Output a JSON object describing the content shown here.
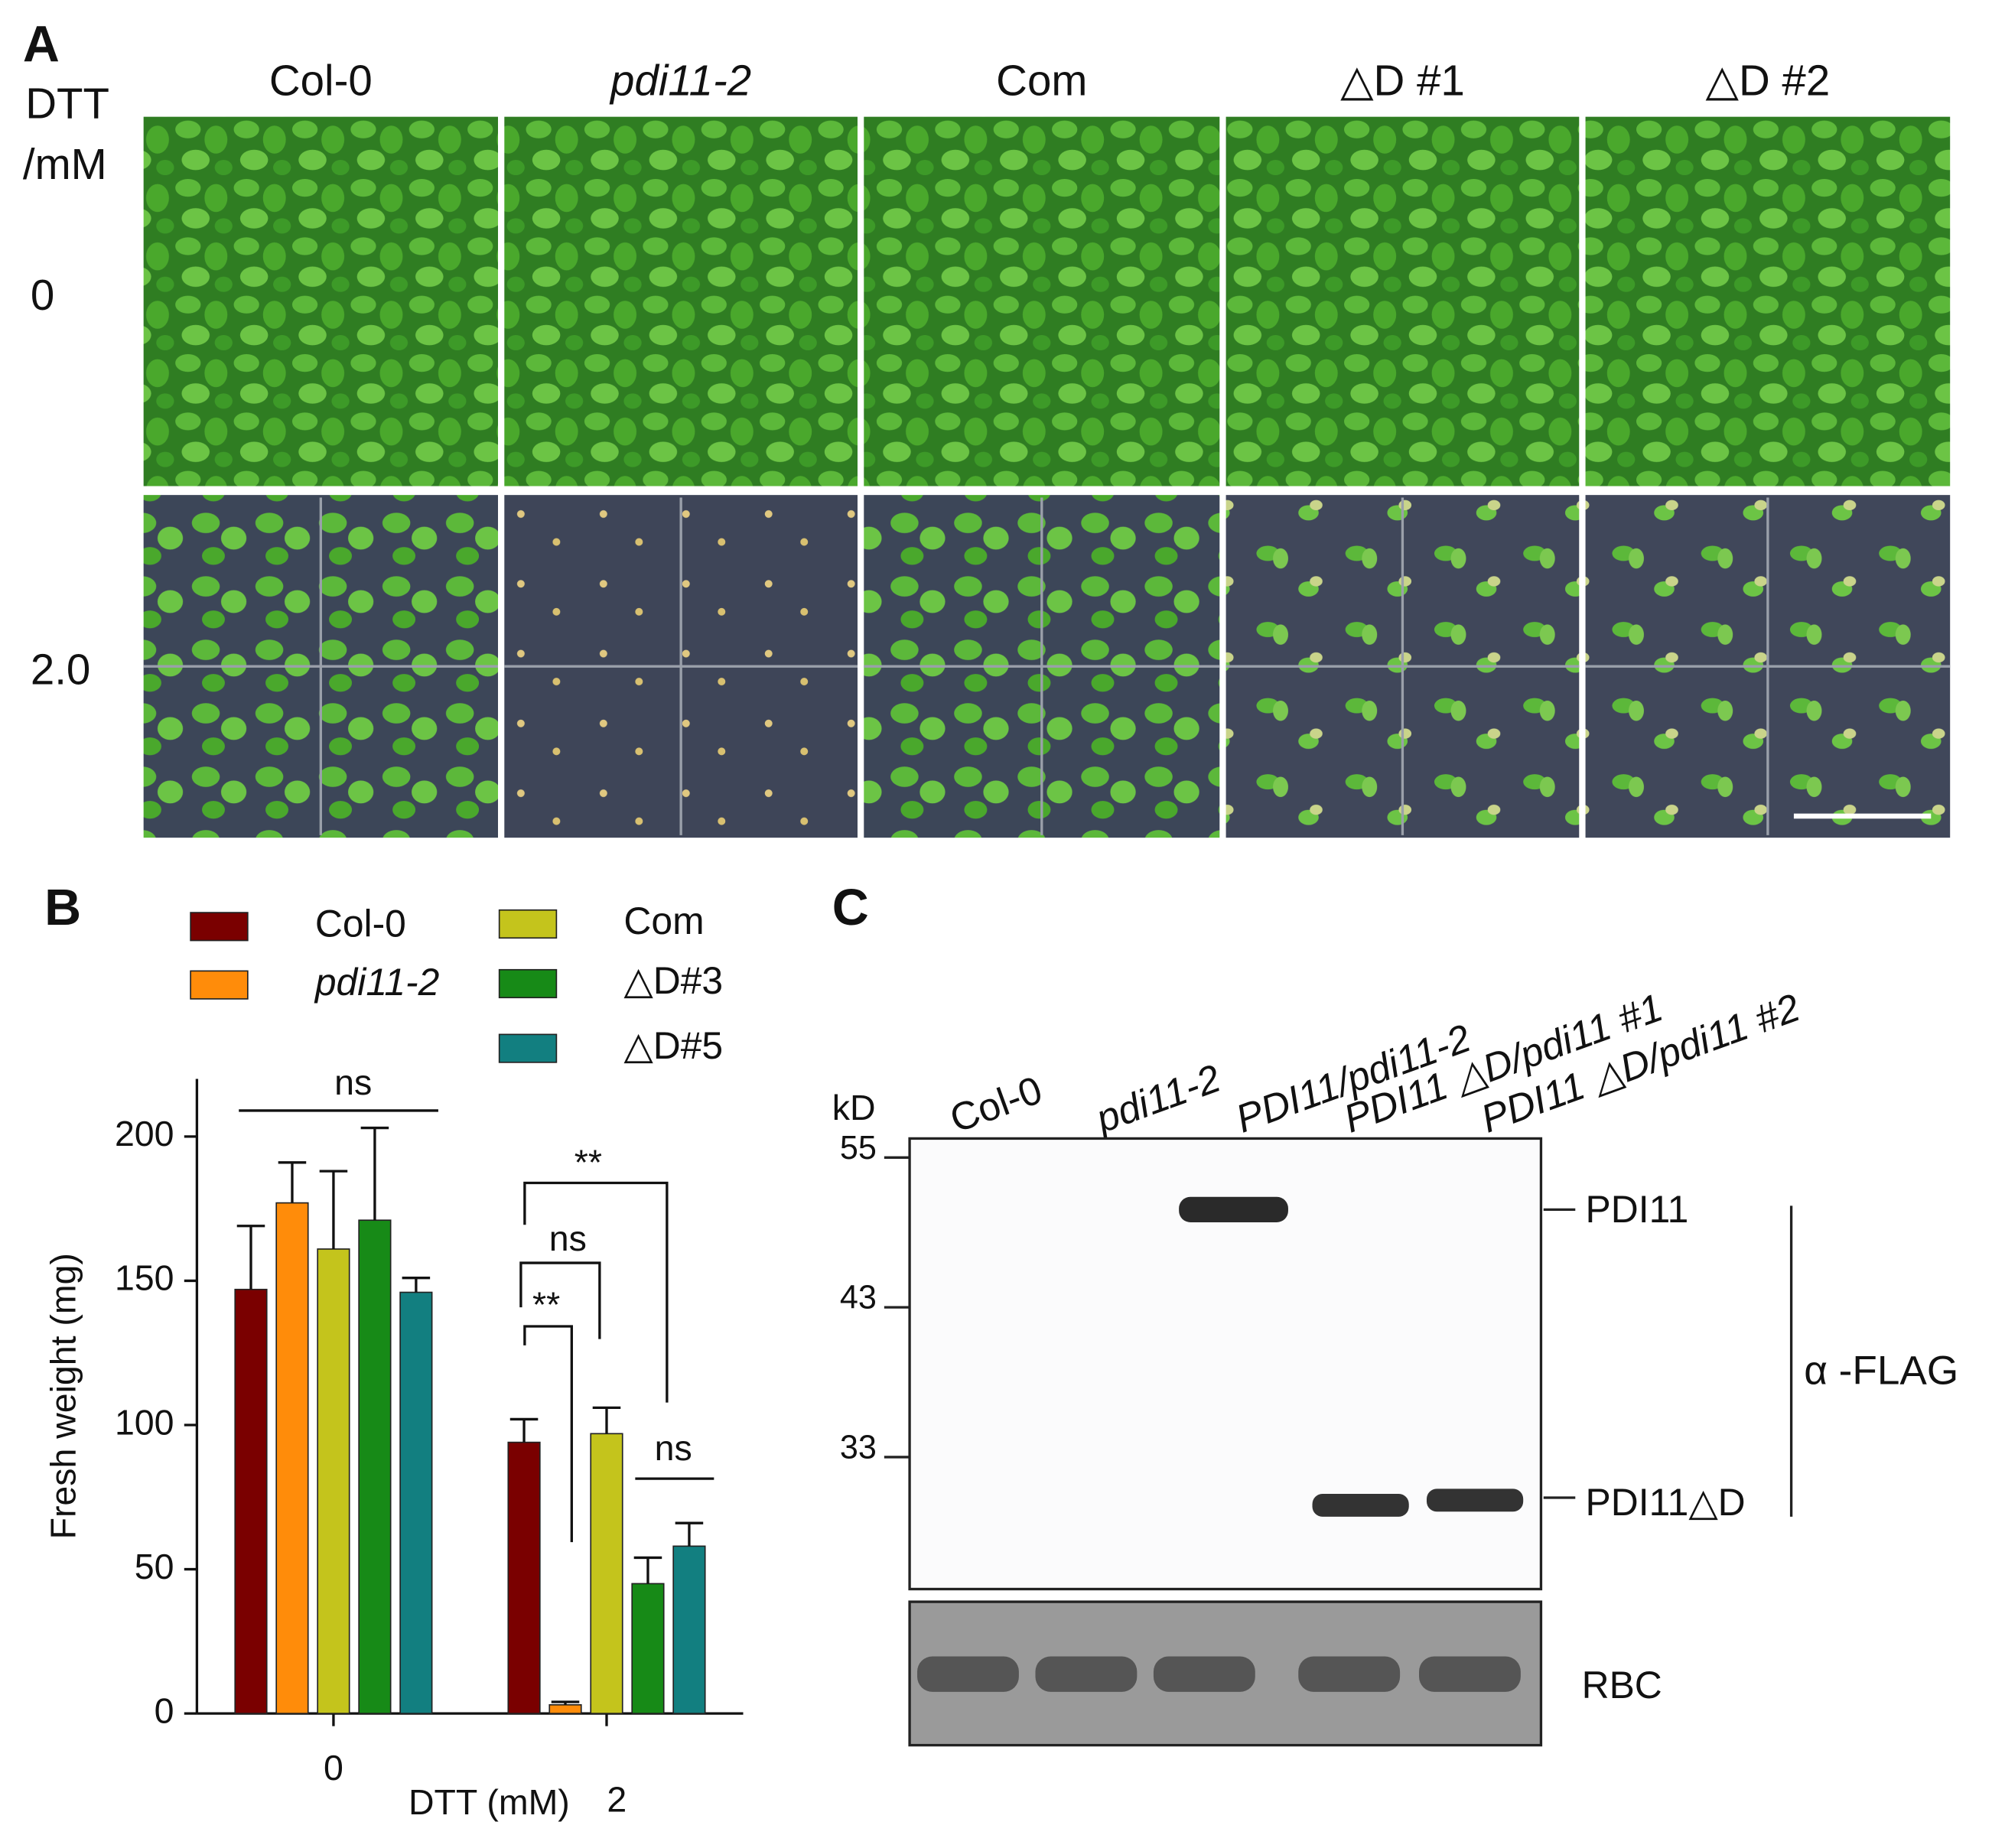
{
  "panel_a": {
    "label": "A",
    "row_header": [
      "DTT",
      "/mM"
    ],
    "rows": [
      "0",
      "2.0"
    ],
    "columns": [
      "Col-0",
      "pdi11-2",
      "Com",
      "△D #1",
      "△D #2"
    ]
  },
  "chart_data": {
    "type": "bar",
    "panel_label": "B",
    "categories": [
      "0",
      "2"
    ],
    "series": [
      {
        "name": "Col-0",
        "color": "#7a0000",
        "values": [
          147,
          94
        ],
        "errors": [
          22,
          8
        ]
      },
      {
        "name": "pdi11-2",
        "color": "#ff8c0a",
        "values": [
          177,
          3
        ],
        "errors": [
          14,
          1
        ]
      },
      {
        "name": "Com",
        "color": "#c4c41c",
        "values": [
          161,
          97
        ],
        "errors": [
          27,
          9
        ]
      },
      {
        "name": "△D#3",
        "color": "#178a17",
        "values": [
          171,
          45
        ],
        "errors": [
          32,
          9
        ]
      },
      {
        "name": "△D#5",
        "color": "#127f80",
        "values": [
          146,
          58
        ],
        "errors": [
          5,
          8
        ]
      }
    ],
    "ylim": [
      0,
      220
    ],
    "yticks": [
      0,
      50,
      100,
      150,
      200
    ],
    "x_label": "DTT (mM)",
    "y_label": "Fresh weight (mg)",
    "annotations": [
      "ns",
      "**",
      "ns",
      "**",
      "ns"
    ]
  },
  "panel_c": {
    "label": "C",
    "lanes": [
      "Col-0",
      "pdi11-2",
      "PDI11/pdi11-2",
      "PDI11 △D/pdi11  #1",
      "PDI11 △D/pdi11 #2"
    ],
    "unit": "kD",
    "markers": [
      55,
      43,
      33
    ],
    "bands": [
      "PDI11",
      "PDI11△D"
    ],
    "antibody": "α -FLAG",
    "loading": "RBC"
  }
}
